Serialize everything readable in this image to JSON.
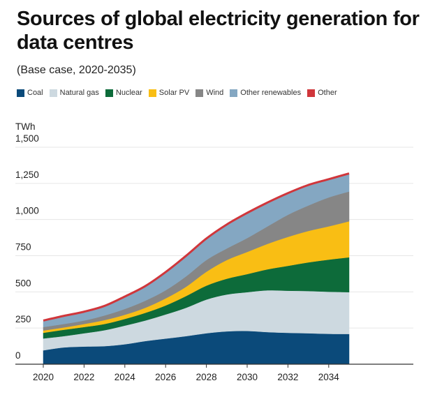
{
  "title": "Sources of global electricity generation for data centres",
  "subtitle": "(Base case, 2020-2035)",
  "chart_data": {
    "type": "area",
    "stacked": true,
    "title": "Sources of global electricity generation for data centres",
    "subtitle": "(Base case, 2020-2035)",
    "ylabel": "TWh",
    "xlabel": "",
    "ylim": [
      0,
      1500
    ],
    "xlim": [
      2020,
      2035
    ],
    "yticks": [
      "0",
      "250",
      "500",
      "750",
      "1,000",
      "1,250",
      "1,500"
    ],
    "ytick_values": [
      0,
      250,
      500,
      750,
      1000,
      1250,
      1500
    ],
    "xticks": [
      "2020",
      "2022",
      "2024",
      "2026",
      "2028",
      "2030",
      "2032",
      "2034"
    ],
    "grid": true,
    "legend_position": "top",
    "x": [
      2020,
      2021,
      2022,
      2023,
      2024,
      2025,
      2026,
      2027,
      2028,
      2029,
      2030,
      2031,
      2032,
      2033,
      2034,
      2035
    ],
    "series": [
      {
        "name": "Coal",
        "color": "#0b4a7a",
        "values": [
          96,
          116,
          122,
          125,
          138,
          160,
          177,
          194,
          214,
          227,
          230,
          222,
          217,
          214,
          210,
          209
        ]
      },
      {
        "name": "Natural gas",
        "color": "#cdd9e0",
        "values": [
          82,
          78,
          92,
          110,
          129,
          142,
          167,
          196,
          233,
          255,
          268,
          289,
          291,
          292,
          291,
          289
        ]
      },
      {
        "name": "Nuclear",
        "color": "#0d6b3a",
        "values": [
          39,
          44,
          43,
          43,
          46,
          53,
          62,
          81,
          96,
          109,
          125,
          145,
          172,
          198,
          222,
          241
        ]
      },
      {
        "name": "Solar PV",
        "color": "#f9be14",
        "values": [
          16,
          16,
          21,
          27,
          29,
          35,
          49,
          64,
          96,
          129,
          153,
          176,
          200,
          217,
          230,
          249
        ]
      },
      {
        "name": "Wind",
        "color": "#868686",
        "values": [
          24,
          24,
          24,
          32,
          40,
          49,
          56,
          72,
          81,
          80,
          96,
          121,
          153,
          176,
          200,
          206
        ]
      },
      {
        "name": "Other renewables",
        "color": "#84a7c2",
        "values": [
          40,
          51,
          56,
          61,
          81,
          96,
          121,
          137,
          144,
          161,
          169,
          160,
          145,
          137,
          121,
          120
        ]
      },
      {
        "name": "Other",
        "color": "#d0363b",
        "values": [
          5,
          5,
          5,
          5,
          5,
          5,
          5,
          5,
          5,
          5,
          5,
          5,
          5,
          5,
          5,
          5
        ]
      }
    ]
  }
}
